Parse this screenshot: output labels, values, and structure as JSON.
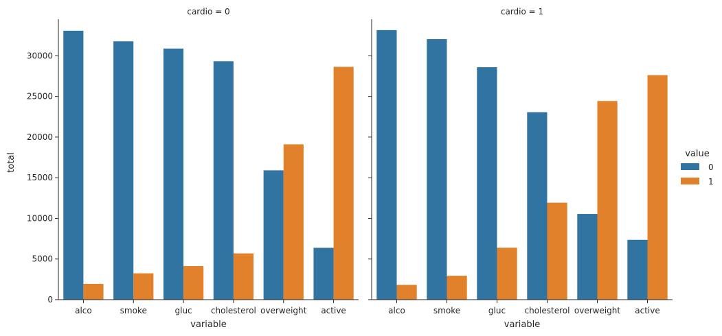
{
  "chart_data": {
    "type": "bar",
    "facet_variable": "cardio",
    "categories": [
      "alco",
      "smoke",
      "gluc",
      "cholesterol",
      "overweight",
      "active"
    ],
    "xlabel": "variable",
    "ylabel": "total",
    "ylim": [
      0,
      34500
    ],
    "yticks": [
      0,
      5000,
      10000,
      15000,
      20000,
      25000,
      30000
    ],
    "grid": false,
    "legend": {
      "title": "value",
      "placement": "right",
      "entries": [
        {
          "label": "0",
          "color": "#3274a1"
        },
        {
          "label": "1",
          "color": "#e1812c"
        }
      ]
    },
    "panels": [
      {
        "title": "cardio = 0",
        "series": [
          {
            "name": "0",
            "color": "#3274a1",
            "values": [
              33080,
              31780,
              30890,
              29330,
              15910,
              6380
            ]
          },
          {
            "name": "1",
            "color": "#e1812c",
            "values": [
              1940,
              3240,
              4130,
              5690,
              19110,
              28640
            ]
          }
        ]
      },
      {
        "title": "cardio = 1",
        "series": [
          {
            "name": "0",
            "color": "#3274a1",
            "values": [
              33160,
              32050,
              28590,
              23060,
              10540,
              7360
            ]
          },
          {
            "name": "1",
            "color": "#e1812c",
            "values": [
              1820,
              2940,
              6390,
              11930,
              24440,
              27620
            ]
          }
        ]
      }
    ]
  }
}
